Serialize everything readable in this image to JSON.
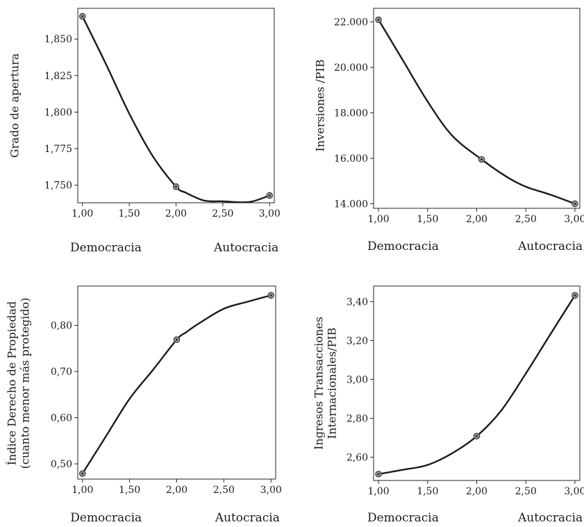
{
  "chart_data": [
    {
      "type": "line",
      "ylabel": [
        "Grado de apertura"
      ],
      "xlabel_left": "Democracia",
      "xlabel_right": "Autocracia",
      "xticks": [
        "1,00",
        "1,50",
        "2,00",
        "2,50",
        "3,00"
      ],
      "xlim": [
        0.95,
        3.05
      ],
      "yticks": [
        "1,750",
        "1,775",
        "1,800",
        "1,825",
        "1,850"
      ],
      "ytick_values": [
        1.75,
        1.775,
        1.8,
        1.825,
        1.85
      ],
      "ylim": [
        1.738,
        1.871
      ],
      "curve": {
        "x": [
          1.0,
          1.25,
          1.5,
          1.75,
          2.0,
          2.1,
          2.3,
          2.5,
          2.78,
          3.0
        ],
        "y": [
          1.8655,
          1.833,
          1.799,
          1.77,
          1.749,
          1.745,
          1.7395,
          1.739,
          1.7385,
          1.743
        ]
      },
      "points": {
        "x": [
          1.0,
          2.0,
          3.0
        ],
        "y": [
          1.8655,
          1.749,
          1.743
        ]
      }
    },
    {
      "type": "line",
      "ylabel": [
        "Inversiones /PIB"
      ],
      "xlabel_left": "Democracia",
      "xlabel_right": "Autocracia",
      "xticks": [
        "1,00",
        "1,50",
        "2,00",
        "2,50",
        "3,00"
      ],
      "xlim": [
        0.95,
        3.05
      ],
      "yticks": [
        "14.000",
        "16.000",
        "18.000",
        "20.000",
        "22.000"
      ],
      "ytick_values": [
        14000,
        16000,
        18000,
        20000,
        22000
      ],
      "ylim": [
        13800,
        22600
      ],
      "curve": {
        "x": [
          1.0,
          1.25,
          1.5,
          1.75,
          2.05,
          2.3,
          2.5,
          2.75,
          3.0
        ],
        "y": [
          22100,
          20300,
          18500,
          17000,
          15950,
          15200,
          14750,
          14400,
          14000
        ]
      },
      "points": {
        "x": [
          1.0,
          2.05,
          3.0
        ],
        "y": [
          22100,
          15950,
          14000
        ]
      }
    },
    {
      "type": "line",
      "ylabel": [
        "Índice Derecho de Propiedad",
        "(cuanto menor más protegido)"
      ],
      "xlabel_left": "Democracia",
      "xlabel_right": "Autocracia",
      "xticks": [
        "1,00",
        "1,50",
        "2,00",
        "2,50",
        "3,00"
      ],
      "xlim": [
        0.95,
        3.05
      ],
      "yticks": [
        "0,50",
        "0,60",
        "0,70",
        "0,80"
      ],
      "ytick_values": [
        0.5,
        0.6,
        0.7,
        0.8
      ],
      "ylim": [
        0.467,
        0.885
      ],
      "curve": {
        "x": [
          1.0,
          1.25,
          1.5,
          1.75,
          2.0,
          2.1,
          2.25,
          2.5,
          2.75,
          3.0
        ],
        "y": [
          0.479,
          0.56,
          0.641,
          0.704,
          0.769,
          0.785,
          0.806,
          0.836,
          0.851,
          0.865
        ]
      },
      "points": {
        "x": [
          1.0,
          2.0,
          3.0
        ],
        "y": [
          0.479,
          0.769,
          0.865
        ]
      }
    },
    {
      "type": "line",
      "ylabel": [
        "Ingresos Transacciones",
        "Internacionales/PIB"
      ],
      "xlabel_left": "Democracia",
      "xlabel_right": "Autocracia",
      "xticks": [
        "1,00",
        "1,50",
        "2,00",
        "2,50",
        "3,00"
      ],
      "xlim": [
        0.95,
        3.05
      ],
      "yticks": [
        "2,60",
        "2,80",
        "3,00",
        "3,20",
        "3,40"
      ],
      "ytick_values": [
        2.6,
        2.8,
        3.0,
        3.2,
        3.4
      ],
      "ylim": [
        2.48,
        3.48
      ],
      "curve": {
        "x": [
          1.0,
          1.25,
          1.5,
          1.75,
          2.0,
          2.25,
          2.5,
          2.75,
          3.0
        ],
        "y": [
          2.513,
          2.535,
          2.56,
          2.62,
          2.708,
          2.84,
          3.03,
          3.232,
          3.432
        ]
      },
      "points": {
        "x": [
          1.0,
          2.0,
          3.0
        ],
        "y": [
          2.513,
          2.708,
          3.432
        ]
      }
    }
  ]
}
